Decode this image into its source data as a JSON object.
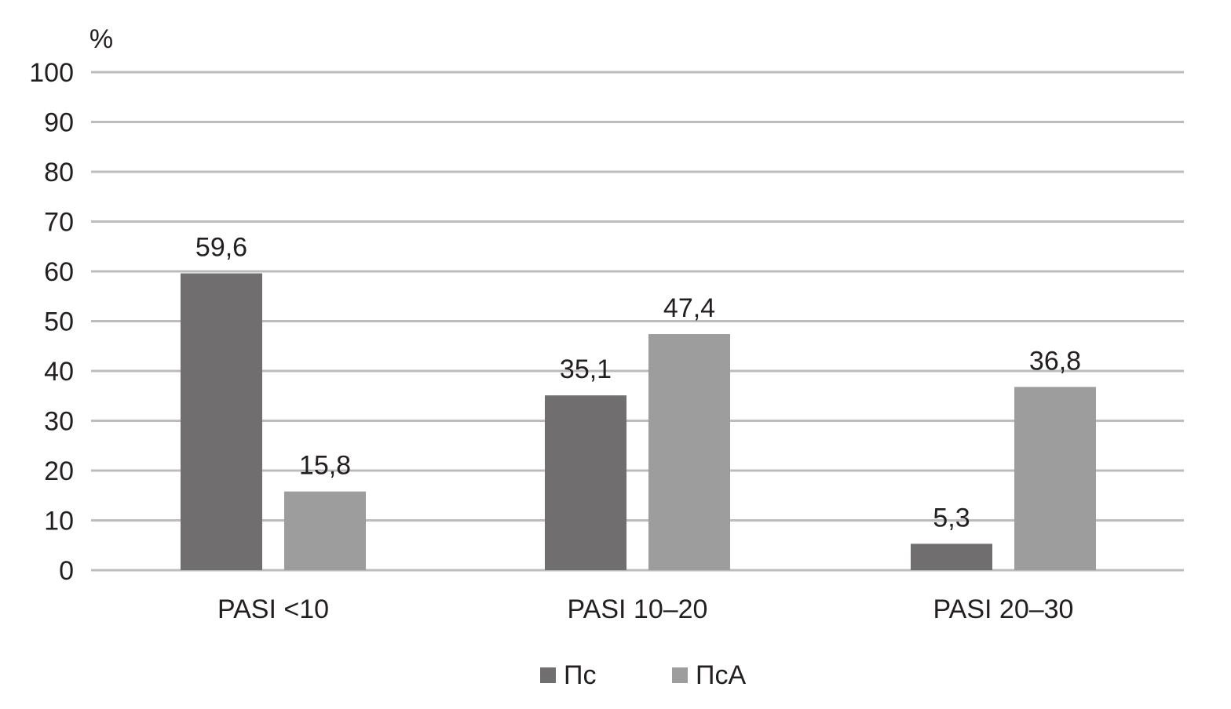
{
  "chart_data": {
    "type": "bar",
    "title": "",
    "xlabel": "",
    "ylabel": "%",
    "ylim": [
      0,
      100
    ],
    "yticks": [
      "0",
      "10",
      "20",
      "30",
      "40",
      "50",
      "60",
      "70",
      "80",
      "90",
      "100"
    ],
    "grid": true,
    "legend_position": "bottom-center",
    "categories": [
      "PASI <10",
      "PASI 10–20",
      "PASI 20–30"
    ],
    "series": [
      {
        "name": "Пс",
        "values": [
          59.6,
          35.1,
          5.3
        ],
        "labels": [
          "59,6",
          "35,1",
          "5,3"
        ],
        "color": "#706e6e"
      },
      {
        "name": "ПсА",
        "values": [
          15.8,
          47.4,
          36.8
        ],
        "labels": [
          "15,8",
          "47,4",
          "36,8"
        ],
        "color": "#9d9d9d"
      }
    ],
    "grid_color": "#bcbcbc"
  }
}
